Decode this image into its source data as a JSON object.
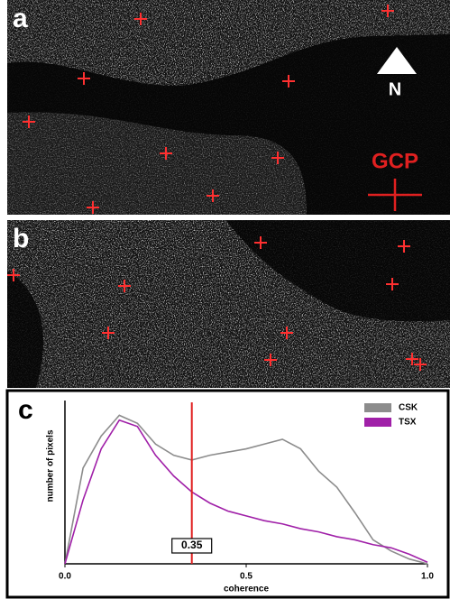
{
  "panels": {
    "a": {
      "label": "a",
      "north": "N",
      "gcp": "GCP"
    },
    "b": {
      "label": "b"
    },
    "c": {
      "label": "c"
    }
  },
  "chart_data": {
    "type": "line",
    "xlabel": "coherence",
    "ylabel": "number of pixels",
    "x": [
      0,
      0.05,
      0.1,
      0.15,
      0.2,
      0.25,
      0.3,
      0.35,
      0.4,
      0.45,
      0.5,
      0.55,
      0.6,
      0.65,
      0.7,
      0.75,
      0.8,
      0.85,
      0.9,
      0.95,
      1.0
    ],
    "series": [
      {
        "name": "CSK",
        "color": "#8c8c8c",
        "values": [
          0,
          60,
          80,
          93,
          88,
          75,
          68,
          65,
          68,
          70,
          72,
          75,
          78,
          72,
          58,
          48,
          32,
          15,
          8,
          3,
          0
        ]
      },
      {
        "name": "TSX",
        "color": "#a020a8",
        "values": [
          0,
          40,
          72,
          90,
          86,
          68,
          55,
          45,
          38,
          33,
          30,
          27,
          25,
          22,
          20,
          17,
          15,
          12,
          10,
          6,
          1
        ]
      }
    ],
    "xlim": [
      0,
      1.0
    ],
    "ylim": [
      0,
      100
    ],
    "xticks": [
      {
        "value": 0,
        "label": "0.0"
      },
      0.5,
      {
        "value": 1.0,
        "label": "1.0"
      }
    ],
    "threshold": 0.35,
    "threshold_color": "#e02020",
    "legend": "top-right"
  }
}
